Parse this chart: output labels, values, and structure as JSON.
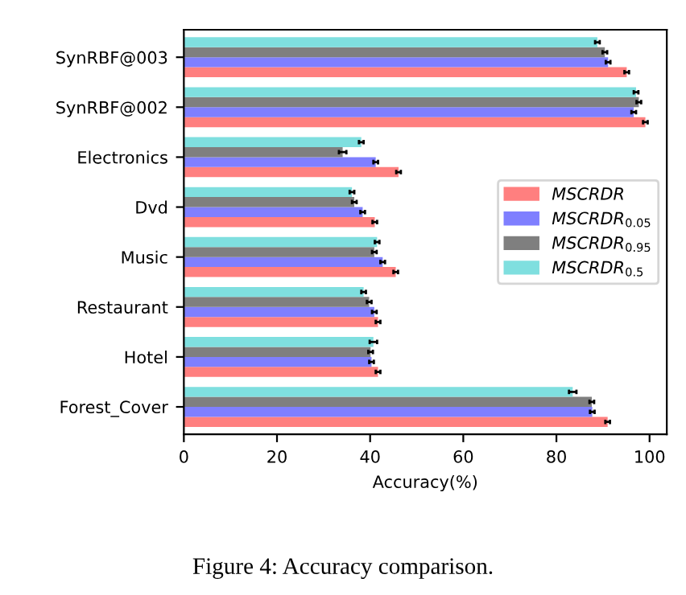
{
  "chart_data": {
    "type": "bar",
    "orientation": "horizontal",
    "xlabel": "Accuracy(%)",
    "categories": [
      "SynRBF@003",
      "SynRBF@002",
      "Electronics",
      "Dvd",
      "Music",
      "Restaurant",
      "Hotel",
      "Forest_Cover"
    ],
    "series": [
      {
        "name": "MSCRDR",
        "color": "#ff7f7f",
        "values": [
          95.1,
          99.1,
          46.1,
          41.0,
          45.5,
          41.7,
          41.7,
          91.0
        ],
        "errors": [
          0.5,
          0.5,
          0.5,
          0.5,
          0.5,
          0.5,
          0.5,
          0.5
        ]
      },
      {
        "name": "MSCRDR$_{0.05}$",
        "color": "#7f7fff",
        "values": [
          91.1,
          96.6,
          41.2,
          38.4,
          42.7,
          40.9,
          40.3,
          87.7
        ],
        "errors": [
          0.5,
          0.5,
          0.5,
          0.5,
          0.5,
          0.5,
          0.5,
          0.5
        ]
      },
      {
        "name": "MSCRDR$_{0.95}$",
        "color": "#7f7f7f",
        "values": [
          90.4,
          97.7,
          34.1,
          36.6,
          40.9,
          39.8,
          40.1,
          87.6
        ],
        "errors": [
          0.5,
          0.5,
          0.8,
          0.5,
          0.5,
          0.5,
          0.5,
          0.5
        ]
      },
      {
        "name": "MSCRDR$_{0.5}$",
        "color": "#7fdfdf",
        "values": [
          88.8,
          97.1,
          38.1,
          36.1,
          41.5,
          38.6,
          40.7,
          83.5
        ],
        "errors": [
          0.5,
          0.5,
          0.5,
          0.5,
          0.5,
          0.5,
          0.8,
          0.8
        ]
      }
    ],
    "xlim": [
      0,
      103.7
    ],
    "xticks": [
      0,
      20,
      40,
      60,
      80,
      100
    ],
    "legend": "center right",
    "annotations": [
      "Figure 4: Accuracy comparison."
    ]
  }
}
